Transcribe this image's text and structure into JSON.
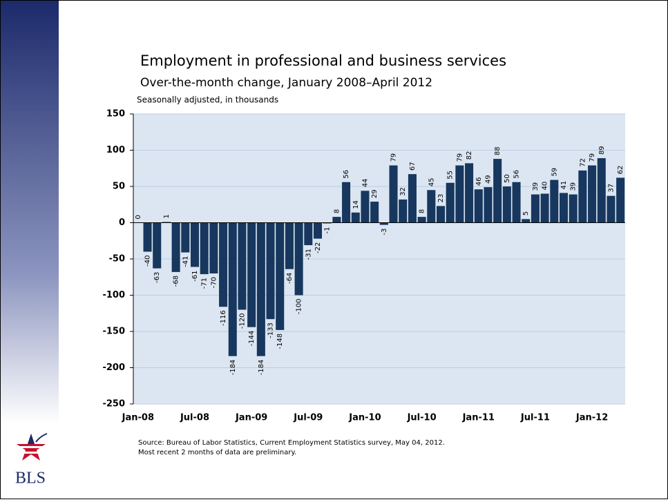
{
  "chart_data": {
    "type": "bar",
    "title": "Employment in professional and business services",
    "subtitle": "Over-the-month change, January 2008–April 2012",
    "y_label": "Seasonally adjusted, in thousands",
    "categories": [
      "Jan-08",
      null,
      null,
      null,
      null,
      null,
      "Jul-08",
      null,
      null,
      null,
      null,
      null,
      "Jan-09",
      null,
      null,
      null,
      null,
      null,
      "Jul-09",
      null,
      null,
      null,
      null,
      null,
      "Jan-10",
      null,
      null,
      null,
      null,
      null,
      "Jul-10",
      null,
      null,
      null,
      null,
      null,
      "Jan-11",
      null,
      null,
      null,
      null,
      null,
      "Jul-11",
      null,
      null,
      null,
      null,
      null,
      "Jan-12",
      null,
      null,
      null
    ],
    "values": [
      0,
      -40,
      -63,
      1,
      -68,
      -41,
      -61,
      -71,
      -70,
      -116,
      -184,
      -120,
      -144,
      -184,
      -133,
      -148,
      -64,
      -100,
      -31,
      -22,
      -1,
      8,
      56,
      14,
      44,
      29,
      -3,
      79,
      32,
      67,
      8,
      45,
      23,
      55,
      79,
      82,
      46,
      49,
      88,
      50,
      56,
      5,
      39,
      40,
      59,
      41,
      39,
      72,
      79,
      89,
      37,
      62
    ],
    "color": "#17375e",
    "ylim": [
      -250,
      150
    ],
    "yticks": [
      -250,
      -200,
      -150,
      -100,
      -50,
      0,
      50,
      100,
      150
    ],
    "grid": true,
    "notes": [
      "Source: Bureau of Labor Statistics, Current Employment Statistics survey, May 04, 2012.",
      "Most recent 2 months of data are preliminary."
    ]
  },
  "logo": "BLS"
}
